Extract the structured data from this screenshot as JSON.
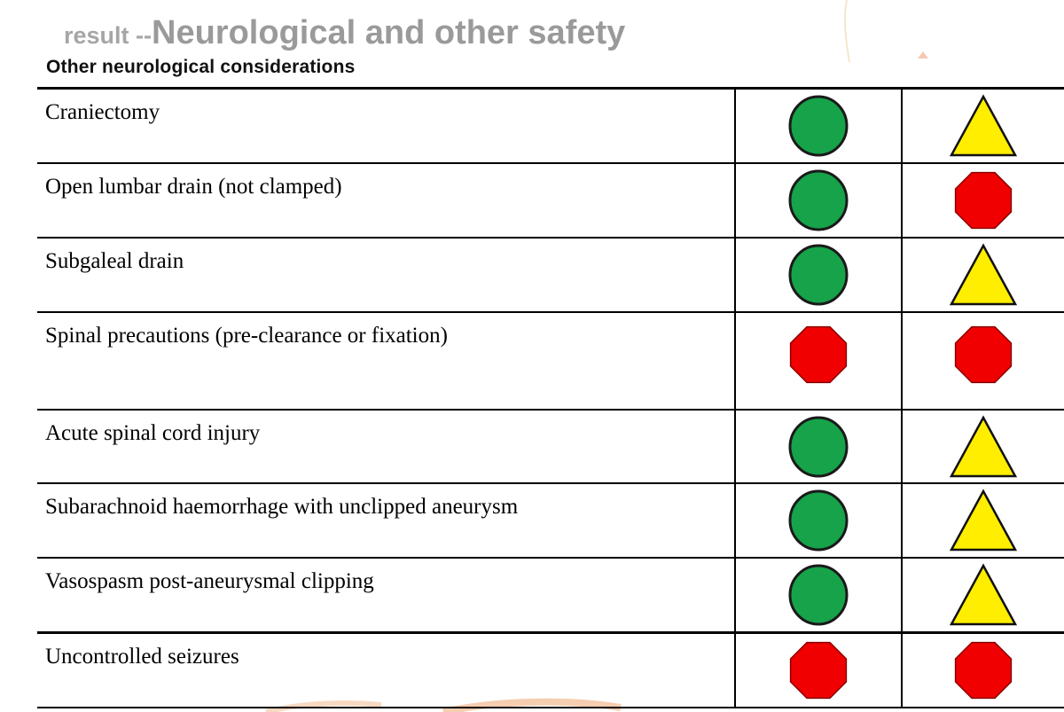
{
  "header": {
    "title_prefix": "result --",
    "title_main": "Neurological and other safety",
    "subtitle": "Other neurological considerations"
  },
  "legend": {
    "green-circle": "#16a34a",
    "red-octagon": "#f00000",
    "yellow-triangle": "#ffee00"
  },
  "rows": [
    {
      "label": "Craniectomy",
      "col1": "green-circle",
      "col2": "yellow-triangle"
    },
    {
      "label": "Open lumbar drain (not clamped)",
      "col1": "green-circle",
      "col2": "red-octagon"
    },
    {
      "label": "Subgaleal drain",
      "col1": "green-circle",
      "col2": "yellow-triangle"
    },
    {
      "label": "Spinal precautions (pre-clearance or fixation)",
      "col1": "red-octagon",
      "col2": "red-octagon"
    },
    {
      "label": "Acute spinal cord injury",
      "col1": "green-circle",
      "col2": "yellow-triangle"
    },
    {
      "label": "Subarachnoid haemorrhage with unclipped aneurysm",
      "col1": "green-circle",
      "col2": "yellow-triangle"
    },
    {
      "label": "Vasospasm post-aneurysmal clipping",
      "col1": "green-circle",
      "col2": "yellow-triangle"
    },
    {
      "label": "Uncontrolled seizures",
      "col1": "red-octagon",
      "col2": "red-octagon"
    }
  ]
}
